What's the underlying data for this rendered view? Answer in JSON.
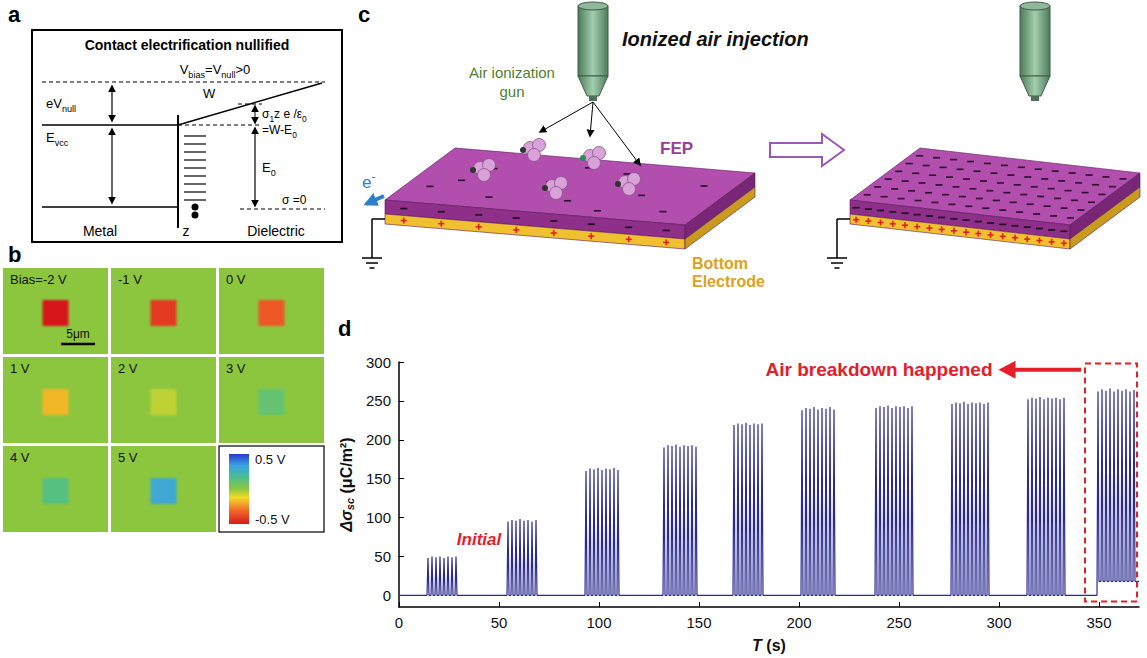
{
  "panels": {
    "a": {
      "letter": "a",
      "title": "Contact electrification nullified",
      "bias": [
        "V",
        {
          "sub": "bias"
        },
        "=V",
        {
          "sub": "null"
        },
        ">0"
      ],
      "W": "W",
      "eVnull": [
        "eV",
        {
          "sub": "null"
        }
      ],
      "Evcc": [
        "E",
        {
          "sub": "vcc"
        }
      ],
      "slope": [
        "σ",
        {
          "sub": "1"
        },
        "z e /ε",
        {
          "sub": "0"
        }
      ],
      "slope_eq": [
        "=W-E",
        {
          "sub": "0"
        }
      ],
      "E0": [
        "E",
        {
          "sub": "0"
        }
      ],
      "sigma0": "σ =0",
      "metal": "Metal",
      "z": "z",
      "dielectric": "Dielectric"
    },
    "b": {
      "letter": "b",
      "tiles": [
        {
          "label": "Bias=-2 V",
          "value": -0.5
        },
        {
          "label": "-1 V",
          "value": -0.42
        },
        {
          "label": "0 V",
          "value": -0.35
        },
        {
          "label": "1 V",
          "value": -0.18
        },
        {
          "label": "2 V",
          "value": -0.06
        },
        {
          "label": "3 V",
          "value": 0.1
        },
        {
          "label": "4 V",
          "value": 0.14
        },
        {
          "label": "5 V",
          "value": 0.3
        }
      ],
      "background": 0,
      "scale_bar": "5μm",
      "colorbar": {
        "range": [
          -0.5,
          0.5
        ],
        "ticks": [
          {
            "value": 0.5,
            "label": "0.5 V"
          },
          {
            "value": -0.5,
            "label": "-0.5 V"
          }
        ]
      }
    },
    "c": {
      "letter": "c",
      "title": "Ionized air injection",
      "gun_label": "Air ionization gun",
      "fep": "FEP",
      "electrode": "Bottom Electrode",
      "electron": [
        "e",
        {
          "sup": "-"
        }
      ]
    },
    "d": {
      "letter": "d"
    }
  },
  "chart_data": {
    "type": "line",
    "xlabel": [
      {
        "i": "T"
      },
      " (s)"
    ],
    "ylabel": [
      {
        "i": "Δσ"
      },
      {
        "sub": "sc"
      },
      " (μC/m²)"
    ],
    "color": "#2a2a90",
    "xlim": [
      0,
      370
    ],
    "xticks": [
      0,
      50,
      100,
      150,
      200,
      250,
      300,
      350
    ],
    "ylim": [
      -15,
      300
    ],
    "yticks": [
      0,
      50,
      100,
      150,
      200,
      250,
      300
    ],
    "grid": false,
    "annotations": [
      {
        "text": "Initial",
        "x": 40,
        "y": 72
      },
      {
        "text": "Air breakdown happened",
        "x": 240,
        "y": 290,
        "box": {
          "x": [
            343,
            369
          ],
          "y": [
            -8,
            298
          ]
        }
      }
    ],
    "x": [
      0,
      14,
      14.5,
      15,
      16,
      16.5,
      17,
      18,
      18.5,
      19,
      20,
      20.5,
      21,
      22,
      22.5,
      23,
      24,
      24.5,
      25,
      26,
      26.5,
      27,
      28,
      28.5,
      29,
      54,
      54.5,
      55,
      56,
      56.5,
      57,
      58,
      58.5,
      59,
      60,
      60.5,
      61,
      62,
      62.5,
      63,
      64,
      64.5,
      65,
      66,
      66.5,
      67,
      68,
      68.5,
      69,
      93,
      93.5,
      94,
      95,
      95.5,
      96,
      97,
      97.5,
      98,
      99,
      99.5,
      100,
      101,
      101.5,
      102,
      103,
      103.5,
      104,
      105,
      105.5,
      106,
      107,
      107.5,
      108,
      109,
      109.5,
      110,
      132,
      132.5,
      133,
      134,
      134.5,
      135,
      136,
      136.5,
      137,
      138,
      138.5,
      139,
      140,
      140.5,
      141,
      142,
      142.5,
      143,
      144,
      144.5,
      145,
      146,
      146.5,
      147,
      148,
      148.5,
      149,
      167,
      167.5,
      168,
      169,
      169.5,
      170,
      171,
      171.5,
      172,
      173,
      173.5,
      174,
      175,
      175.5,
      176,
      177,
      177.5,
      178,
      179,
      179.5,
      180,
      181,
      181.5,
      182,
      201,
      201.5,
      202,
      203,
      203.5,
      204,
      205,
      205.5,
      206,
      207,
      207.5,
      208,
      209,
      209.5,
      210,
      211,
      211.5,
      212,
      213,
      213.5,
      214,
      215,
      215.5,
      216,
      217,
      217.5,
      218,
      238,
      238.5,
      239,
      240,
      240.5,
      241,
      242,
      242.5,
      243,
      244,
      244.5,
      245,
      246,
      246.5,
      247,
      248,
      248.5,
      249,
      250,
      250.5,
      251,
      252,
      252.5,
      253,
      254,
      254.5,
      255,
      256,
      256.5,
      257,
      276,
      276.5,
      277,
      278,
      278.5,
      279,
      280,
      280.5,
      281,
      282,
      282.5,
      283,
      284,
      284.5,
      285,
      286,
      286.5,
      287,
      288,
      288.5,
      289,
      290,
      290.5,
      291,
      292,
      292.5,
      293,
      294,
      294.5,
      295,
      314,
      314.5,
      315,
      316,
      316.5,
      317,
      318,
      318.5,
      319,
      320,
      320.5,
      321,
      322,
      322.5,
      323,
      324,
      324.5,
      325,
      326,
      326.5,
      327,
      328,
      328.5,
      329,
      330,
      330.5,
      331,
      332,
      332.5,
      333,
      349,
      349.5,
      350,
      351,
      351.5,
      352,
      353,
      353.5,
      354,
      355,
      355.5,
      356,
      357,
      357.5,
      358,
      359,
      359.5,
      360,
      361,
      361.5,
      362,
      363,
      363.5,
      364,
      365,
      365.5,
      366,
      367,
      367.5,
      368,
      370
    ],
    "values": [
      0,
      0,
      48,
      0,
      0,
      50,
      0,
      0,
      49,
      0,
      0,
      50,
      0,
      0,
      48,
      0,
      0,
      50,
      0,
      0,
      49,
      0,
      0,
      50,
      0,
      0,
      95,
      0,
      0,
      97,
      0,
      0,
      96,
      0,
      0,
      98,
      0,
      0,
      96,
      0,
      0,
      97,
      0,
      0,
      95,
      0,
      0,
      97,
      0,
      0,
      160,
      0,
      0,
      163,
      0,
      0,
      162,
      0,
      0,
      164,
      0,
      0,
      161,
      0,
      0,
      163,
      0,
      0,
      162,
      0,
      0,
      164,
      0,
      0,
      161,
      0,
      0,
      190,
      0,
      0,
      193,
      0,
      0,
      192,
      0,
      0,
      194,
      0,
      0,
      191,
      0,
      0,
      193,
      0,
      0,
      192,
      0,
      0,
      193,
      0,
      0,
      191,
      0,
      0,
      219,
      0,
      0,
      221,
      0,
      0,
      220,
      0,
      0,
      222,
      0,
      0,
      219,
      0,
      0,
      221,
      0,
      0,
      220,
      0,
      0,
      221,
      0,
      0,
      238,
      0,
      0,
      241,
      0,
      0,
      240,
      0,
      0,
      242,
      0,
      0,
      239,
      0,
      0,
      241,
      0,
      0,
      240,
      0,
      0,
      242,
      0,
      0,
      239,
      0,
      0,
      241,
      0,
      0,
      243,
      0,
      0,
      242,
      0,
      0,
      244,
      0,
      0,
      241,
      0,
      0,
      243,
      0,
      0,
      242,
      0,
      0,
      243,
      0,
      0,
      241,
      0,
      0,
      243,
      0,
      0,
      246,
      0,
      0,
      248,
      0,
      0,
      247,
      0,
      0,
      249,
      0,
      0,
      246,
      0,
      0,
      248,
      0,
      0,
      247,
      0,
      0,
      248,
      0,
      0,
      246,
      0,
      0,
      248,
      0,
      0,
      252,
      0,
      0,
      254,
      0,
      0,
      253,
      0,
      0,
      255,
      0,
      0,
      252,
      0,
      0,
      254,
      0,
      0,
      253,
      0,
      0,
      254,
      0,
      0,
      252,
      0,
      0,
      254,
      0,
      0,
      262,
      18,
      18,
      265,
      18,
      18,
      263,
      18,
      18,
      266,
      18,
      18,
      262,
      18,
      18,
      265,
      18,
      18,
      263,
      18,
      18,
      265,
      18,
      18,
      262,
      18,
      18,
      264,
      18,
      18
    ]
  }
}
